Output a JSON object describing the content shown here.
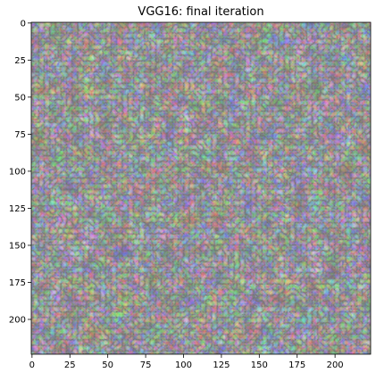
{
  "chart_data": {
    "type": "heatmap",
    "title": "VGG16: final iteration",
    "xlabel": "",
    "ylabel": "",
    "xlim": [
      -0.5,
      223.5
    ],
    "ylim": [
      223.5,
      -0.5
    ],
    "x_ticks": [
      0,
      25,
      50,
      75,
      100,
      125,
      150,
      175,
      200
    ],
    "y_ticks": [
      0,
      25,
      50,
      75,
      100,
      125,
      150,
      175,
      200
    ],
    "grid": false,
    "legend": "none",
    "image": {
      "width": 224,
      "height": 224,
      "description_colors": [
        "#8a8a7e",
        "#9a7f74",
        "#6f8c72",
        "#7d86a0",
        "#b07e72",
        "#5f9a6a"
      ]
    }
  }
}
